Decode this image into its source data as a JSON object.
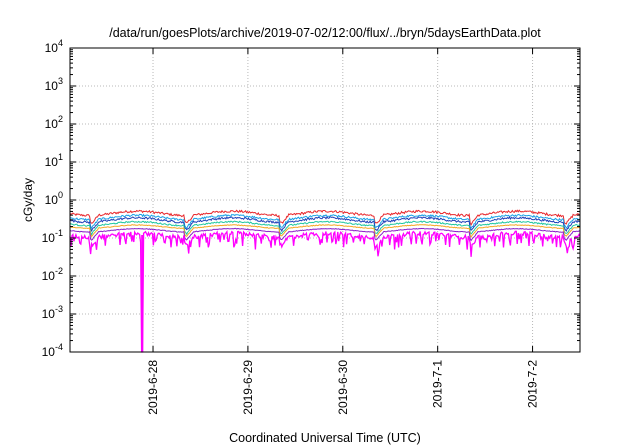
{
  "chart_data": {
    "type": "line",
    "title": "/data/run/goesPlots/archive/2019-07-02/12:00/flux/../bryn/5daysEarthData.plot",
    "xlabel": "Coordinated Universal Time (UTC)",
    "ylabel": "cGy/day",
    "yscale": "log",
    "ylim": [
      0.0001,
      10000
    ],
    "y_ticks": [
      {
        "value": 0.0001,
        "base": "10",
        "exp": "-4"
      },
      {
        "value": 0.001,
        "base": "10",
        "exp": "-3"
      },
      {
        "value": 0.01,
        "base": "10",
        "exp": "-2"
      },
      {
        "value": 0.1,
        "base": "10",
        "exp": "-1"
      },
      {
        "value": 1,
        "base": "10",
        "exp": "0"
      },
      {
        "value": 10,
        "base": "10",
        "exp": "1"
      },
      {
        "value": 100,
        "base": "10",
        "exp": "2"
      },
      {
        "value": 1000,
        "base": "10",
        "exp": "3"
      },
      {
        "value": 10000,
        "base": "10",
        "exp": "4"
      }
    ],
    "xlim": [
      "2019-06-27T03:00",
      "2019-07-02T12:00"
    ],
    "x_ticks": [
      {
        "value": "2019-06-28T00:00",
        "label": "2019-6-28"
      },
      {
        "value": "2019-06-29T00:00",
        "label": "2019-6-29"
      },
      {
        "value": "2019-06-30T00:00",
        "label": "2019-6-30"
      },
      {
        "value": "2019-07-01T00:00",
        "label": "2019-7-1"
      },
      {
        "value": "2019-07-02T00:00",
        "label": "2019-7-2"
      }
    ],
    "grid": true,
    "series": [
      {
        "color": "#e8262b",
        "level": 0.45,
        "amp": 0.13,
        "noise": 0.07
      },
      {
        "color": "#1aa0e6",
        "level": 0.35,
        "amp": 0.13,
        "noise": 0.06
      },
      {
        "color": "#1f3fb8",
        "level": 0.3,
        "amp": 0.13,
        "noise": 0.06
      },
      {
        "color": "#20c8a0",
        "level": 0.24,
        "amp": 0.12,
        "noise": 0.04
      },
      {
        "color": "#f5a623",
        "level": 0.2,
        "amp": 0.1,
        "noise": 0.02
      },
      {
        "color": "#8b1fc8",
        "level": 0.16,
        "amp": 0.1,
        "noise": 0.02
      },
      {
        "color": "#ff00ff",
        "level": 0.12,
        "amp": 0.12,
        "noise": 0.12
      }
    ],
    "dropout": {
      "time": "2019-06-27T21:15",
      "value": 0.0001
    }
  }
}
